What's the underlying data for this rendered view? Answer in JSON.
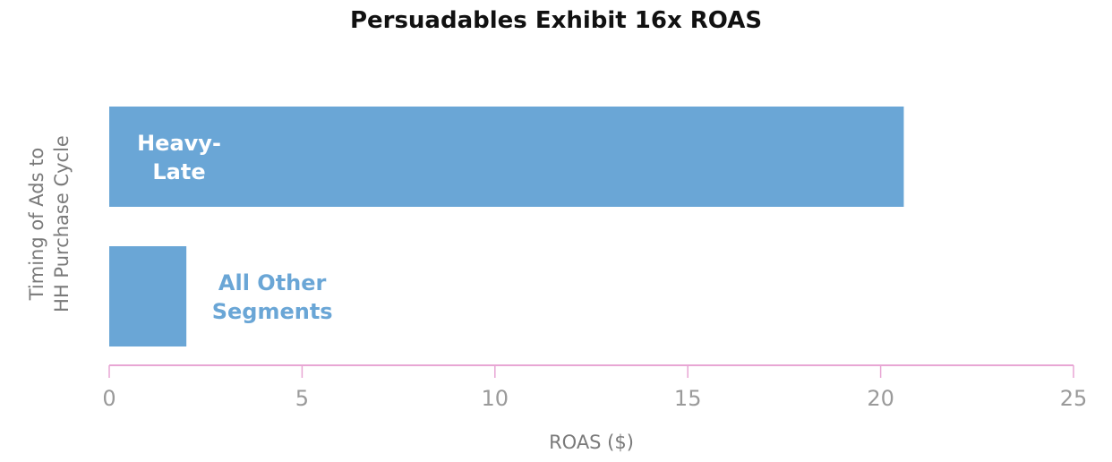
{
  "chart_data": {
    "type": "bar",
    "orientation": "horizontal",
    "title": "Persuadables Exhibit 16x ROAS",
    "xlabel": "ROAS ($)",
    "ylabel_lines": [
      "Timing of Ads to",
      "HH Purchase Cycle"
    ],
    "xlim": [
      0,
      25
    ],
    "xticks": [
      0,
      5,
      10,
      15,
      20,
      25
    ],
    "categories": [
      {
        "label_lines": [
          "Heavy-",
          "Late"
        ],
        "label_position": "inside"
      },
      {
        "label_lines": [
          "All Other",
          "Segments"
        ],
        "label_position": "outside"
      }
    ],
    "values": [
      20.6,
      2.0
    ],
    "grid": false,
    "legend": "none",
    "colors": {
      "bar": "#6aa6d6",
      "inside_label": "#ffffff",
      "outside_label": "#6aa6d6",
      "axis": "#e8a6d4"
    }
  }
}
